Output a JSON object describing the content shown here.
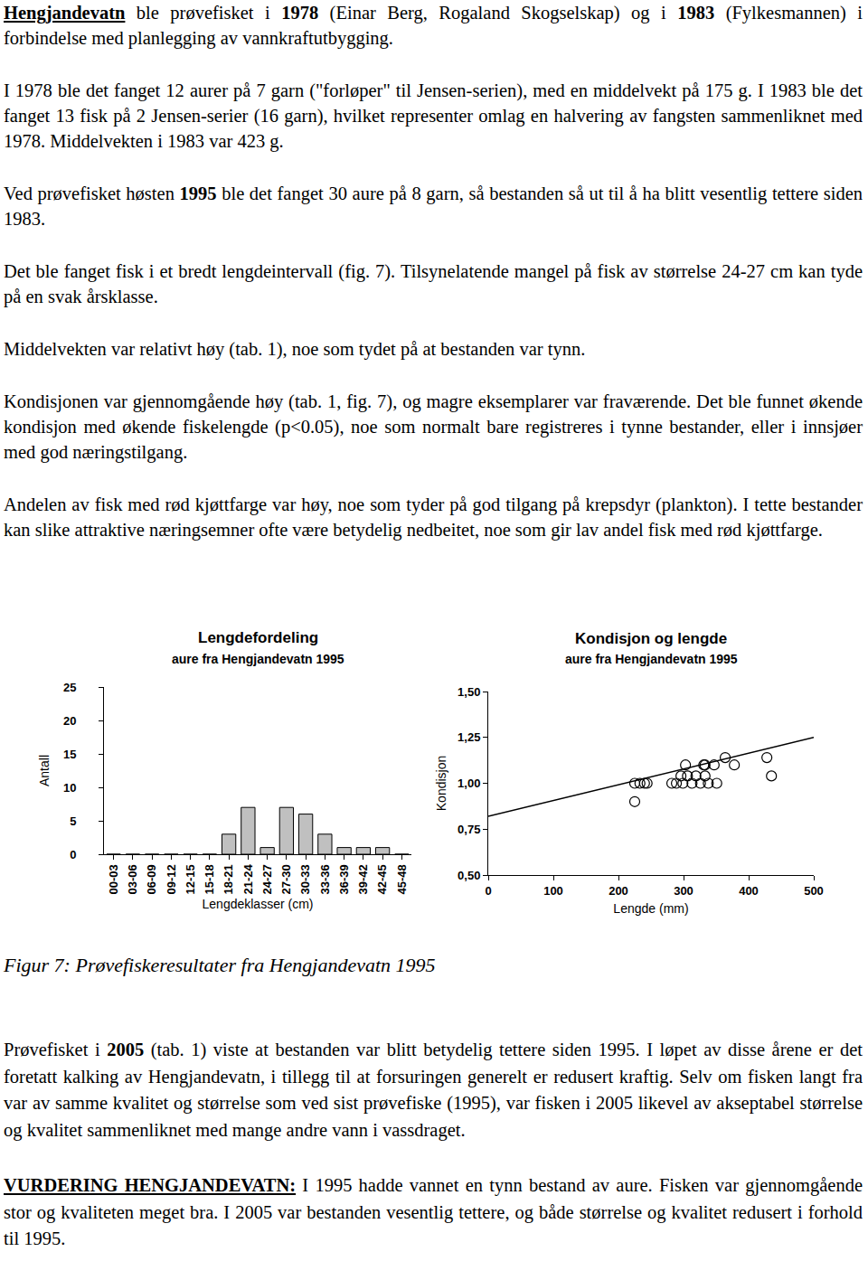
{
  "paragraphs_before": [
    [
      {
        "text": "Hengjandevatn",
        "bold": true,
        "underline": true
      },
      " ble prøvefisket i ",
      {
        "text": "1978",
        "bold": true
      },
      " (Einar Berg, Rogaland Skogselskap) og i ",
      {
        "text": "1983",
        "bold": true
      },
      " (Fylkesmannen) i forbindelse med planlegging av vannkraftutbygging."
    ],
    [
      "I 1978 ble det fanget 12 aurer på 7 garn (\"forløper\" til Jensen-serien), med en middelvekt på 175 g. I 1983 ble det fanget 13 fisk på 2 Jensen-serier (16 garn), hvilket representer omlag en halvering av fangsten sammenliknet med 1978. Middelvekten i 1983 var 423 g."
    ],
    [
      "Ved prøvefisket høsten ",
      {
        "text": "1995",
        "bold": true
      },
      " ble det fanget 30 aure på 8 garn, så bestanden så ut til å ha blitt vesentlig tettere siden 1983."
    ],
    [
      "Det ble fanget fisk i et bredt lengdeintervall (fig. 7). Tilsynelatende mangel på fisk av størrelse 24-27 cm kan tyde på en svak årsklasse."
    ],
    [
      "Middelvekten var relativt høy (tab. 1), noe som tydet på at bestanden var tynn."
    ],
    [
      "Kondisjonen var gjennomgående høy (tab. 1, fig. 7), og magre eksemplarer var fraværende. Det ble funnet økende kondisjon med økende fiskelengde (p<0.05), noe som normalt bare registreres i tynne bestander, eller i innsjøer med god næringstilgang."
    ],
    [
      "Andelen av fisk med rød kjøttfarge var høy, noe som tyder på god tilgang på krepsdyr (plankton). I tette bestander kan slike attraktive næringsemner ofte være betydelig nedbeitet, noe som gir lav andel fisk med rød kjøttfarge."
    ]
  ],
  "chart_data": [
    {
      "type": "bar",
      "title": "Lengdefordeling",
      "subtitle": "aure fra Hengjandevatn 1995",
      "x_label": "Lengdeklasser (cm)",
      "y_label": "Antall",
      "categories": [
        "00-03",
        "03-06",
        "06-09",
        "09-12",
        "12-15",
        "15-18",
        "18-21",
        "21-24",
        "24-27",
        "27-30",
        "30-33",
        "33-36",
        "36-39",
        "39-42",
        "42-45",
        "45-48"
      ],
      "values": [
        0,
        0,
        0,
        0,
        0,
        0,
        3,
        7,
        1,
        7,
        6,
        3,
        1,
        1,
        1,
        0
      ],
      "color": "#c0c0c0",
      "ylim": [
        0,
        25
      ],
      "yticks": [
        0,
        5,
        10,
        15,
        20,
        25
      ],
      "grid": false
    },
    {
      "type": "scatter",
      "title": "Kondisjon og lengde",
      "subtitle": "aure fra Hengjandevatn 1995",
      "x_label": "Lengde (mm)",
      "y_label": "Kondisjon",
      "series": [
        {
          "type": "scatter",
          "marker": "open_circle",
          "color": "#000000",
          "x": [
            225,
            225,
            233,
            240,
            244,
            282,
            289,
            296,
            299,
            303,
            306,
            313,
            319,
            326,
            331,
            333,
            333,
            338,
            347,
            351,
            364,
            378,
            428,
            435
          ],
          "values": [
            0.9,
            1.0,
            1.0,
            1.0,
            1.0,
            1.0,
            1.0,
            1.04,
            1.0,
            1.1,
            1.04,
            1.0,
            1.04,
            1.0,
            1.1,
            1.04,
            1.1,
            1.0,
            1.1,
            1.0,
            1.14,
            1.1,
            1.14,
            1.04
          ]
        },
        {
          "type": "line",
          "line_style": "solid",
          "color": "#000000",
          "x": [
            0,
            500
          ],
          "values": [
            0.82,
            1.25
          ]
        }
      ],
      "xlim": [
        0,
        500
      ],
      "xticks": [
        0,
        100,
        200,
        300,
        400,
        500
      ],
      "ylim": [
        0.5,
        1.5
      ],
      "yticks": [
        {
          "value": 0.5,
          "label": "0,50"
        },
        {
          "value": 0.75,
          "label": "0,75"
        },
        {
          "value": 1.0,
          "label": "1,00"
        },
        {
          "value": 1.25,
          "label": "1,25"
        },
        {
          "value": 1.5,
          "label": "1,50"
        }
      ],
      "grid": false
    }
  ],
  "caption": "Figur 7: Prøvefiskeresultater fra Hengjandevatn 1995",
  "paragraphs_after": [
    [
      "Prøvefisket i ",
      {
        "text": "2005",
        "bold": true
      },
      " (tab. 1) viste at bestanden var blitt betydelig tettere siden 1995. I løpet av disse årene er det foretatt kalking av Hengjandevatn, i tillegg til at forsuringen generelt er redusert kraftig. Selv om fisken langt fra var av samme kvalitet og størrelse som ved sist prøvefiske (1995), var fisken i 2005 likevel av akseptabel størrelse og kvalitet sammenliknet med mange andre vann i vassdraget."
    ],
    [
      {
        "text": "VURDERING HENGJANDEVATN:",
        "bold": true,
        "underline": true
      },
      " I 1995 hadde vannet en tynn bestand av aure. Fisken var gjennomgående stor og kvaliteten meget bra. I 2005 var bestanden vesentlig tettere, og både størrelse og kvalitet redusert i forhold til 1995."
    ]
  ]
}
